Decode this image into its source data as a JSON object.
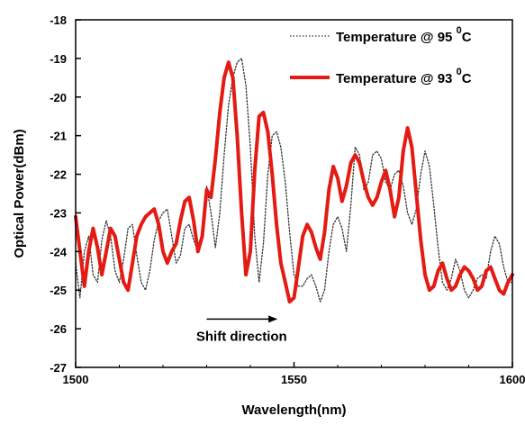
{
  "chart_data": {
    "type": "line",
    "xlabel": "Wavelength(nm)",
    "ylabel": "Optical Power(dBm)",
    "xlim": [
      1500,
      1600
    ],
    "ylim": [
      -27,
      -18
    ],
    "xticks": [
      1500,
      1550,
      1600
    ],
    "yticks": [
      -27,
      -26,
      -25,
      -24,
      -23,
      -22,
      -21,
      -20,
      -19,
      -18
    ],
    "grid": false,
    "legend_position": "top-right",
    "series": [
      {
        "name": "Temperature @ 95",
        "name_superscript": "0",
        "name_suffix": "C",
        "color": "#333333",
        "style": "dotted",
        "x": [
          1500,
          1501,
          1502,
          1503,
          1504,
          1505,
          1506,
          1507,
          1508,
          1509,
          1510,
          1511,
          1512,
          1513,
          1514,
          1515,
          1516,
          1517,
          1518,
          1519,
          1520,
          1521,
          1522,
          1523,
          1524,
          1525,
          1526,
          1527,
          1528,
          1529,
          1530,
          1531,
          1532,
          1533,
          1534,
          1535,
          1536,
          1537,
          1538,
          1539,
          1540,
          1541,
          1542,
          1543,
          1544,
          1545,
          1546,
          1547,
          1548,
          1549,
          1550,
          1551,
          1552,
          1553,
          1554,
          1555,
          1556,
          1557,
          1558,
          1559,
          1560,
          1561,
          1562,
          1563,
          1564,
          1565,
          1566,
          1567,
          1568,
          1569,
          1570,
          1571,
          1572,
          1573,
          1574,
          1575,
          1576,
          1577,
          1578,
          1579,
          1580,
          1581,
          1582,
          1583,
          1584,
          1585,
          1586,
          1587,
          1588,
          1589,
          1590,
          1591,
          1592,
          1593,
          1594,
          1595,
          1596,
          1597,
          1598,
          1599,
          1600
        ],
        "y": [
          -24.3,
          -25.2,
          -24.0,
          -23.6,
          -24.6,
          -24.8,
          -23.7,
          -23.2,
          -23.6,
          -24.5,
          -24.8,
          -24.2,
          -23.4,
          -23.3,
          -24.1,
          -24.8,
          -25.0,
          -24.5,
          -23.7,
          -23.2,
          -23.0,
          -22.9,
          -23.6,
          -24.3,
          -24.1,
          -23.4,
          -23.3,
          -23.7,
          -24.0,
          -23.5,
          -22.3,
          -23.0,
          -23.9,
          -23.0,
          -21.5,
          -20.2,
          -19.5,
          -19.1,
          -19.0,
          -19.7,
          -21.3,
          -23.6,
          -24.8,
          -23.8,
          -22.0,
          -21.0,
          -20.9,
          -21.3,
          -22.2,
          -23.5,
          -24.6,
          -24.9,
          -24.9,
          -24.7,
          -24.6,
          -24.9,
          -25.3,
          -25.0,
          -24.0,
          -23.3,
          -23.1,
          -23.4,
          -24.0,
          -22.8,
          -21.3,
          -21.5,
          -22.4,
          -22.2,
          -21.5,
          -21.4,
          -21.6,
          -22.2,
          -22.4,
          -22.0,
          -21.9,
          -22.3,
          -23.0,
          -23.3,
          -22.9,
          -22.0,
          -21.4,
          -21.8,
          -22.8,
          -23.9,
          -24.8,
          -25.0,
          -24.7,
          -24.2,
          -24.5,
          -25.0,
          -25.2,
          -25.0,
          -24.7,
          -24.6,
          -24.7,
          -24.0,
          -23.6,
          -23.8,
          -24.4,
          -24.8,
          -24.8
        ]
      },
      {
        "name": "Temperature @ 93",
        "name_superscript": "0",
        "name_suffix": "C",
        "color": "#e31b13",
        "style": "solid",
        "x": [
          1500,
          1501,
          1502,
          1503,
          1504,
          1505,
          1506,
          1507,
          1508,
          1509,
          1510,
          1511,
          1512,
          1513,
          1514,
          1515,
          1516,
          1517,
          1518,
          1519,
          1520,
          1521,
          1522,
          1523,
          1524,
          1525,
          1526,
          1527,
          1528,
          1529,
          1530,
          1531,
          1532,
          1533,
          1534,
          1535,
          1536,
          1537,
          1538,
          1539,
          1540,
          1541,
          1542,
          1543,
          1544,
          1545,
          1546,
          1547,
          1548,
          1549,
          1550,
          1551,
          1552,
          1553,
          1554,
          1555,
          1556,
          1557,
          1558,
          1559,
          1560,
          1561,
          1562,
          1563,
          1564,
          1565,
          1566,
          1567,
          1568,
          1569,
          1570,
          1571,
          1572,
          1573,
          1574,
          1575,
          1576,
          1577,
          1578,
          1579,
          1580,
          1581,
          1582,
          1583,
          1584,
          1585,
          1586,
          1587,
          1588,
          1589,
          1590,
          1591,
          1592,
          1593,
          1594,
          1595,
          1596,
          1597,
          1598,
          1599,
          1600
        ],
        "y": [
          -23.1,
          -24.0,
          -24.9,
          -24.0,
          -23.4,
          -23.9,
          -24.6,
          -24.0,
          -23.4,
          -23.6,
          -24.2,
          -24.8,
          -25.0,
          -24.3,
          -23.6,
          -23.3,
          -23.1,
          -23.0,
          -22.9,
          -23.3,
          -24.0,
          -24.3,
          -24.0,
          -23.8,
          -23.2,
          -22.7,
          -22.6,
          -23.2,
          -24.0,
          -23.6,
          -22.4,
          -22.6,
          -21.6,
          -20.4,
          -19.5,
          -19.1,
          -19.5,
          -21.0,
          -23.0,
          -24.6,
          -24.0,
          -21.9,
          -20.5,
          -20.4,
          -20.9,
          -22.0,
          -23.3,
          -24.3,
          -24.8,
          -25.3,
          -25.2,
          -24.4,
          -23.6,
          -23.3,
          -23.5,
          -23.9,
          -24.2,
          -23.5,
          -22.4,
          -21.8,
          -22.1,
          -22.7,
          -22.3,
          -21.7,
          -21.5,
          -21.7,
          -22.2,
          -22.6,
          -22.8,
          -22.6,
          -22.2,
          -21.9,
          -22.4,
          -23.1,
          -22.6,
          -21.4,
          -20.8,
          -21.3,
          -22.5,
          -23.7,
          -24.6,
          -25.0,
          -24.9,
          -24.5,
          -24.3,
          -24.7,
          -25.0,
          -24.9,
          -24.6,
          -24.4,
          -24.5,
          -24.7,
          -25.0,
          -24.9,
          -24.5,
          -24.4,
          -24.7,
          -25.0,
          -25.1,
          -24.8,
          -24.6
        ]
      }
    ],
    "annotations": [
      {
        "text": "Shift direction",
        "arrow_from": {
          "x": 1530,
          "y": -25.75
        },
        "arrow_to": {
          "x": 1546,
          "y": -25.75
        }
      }
    ]
  }
}
